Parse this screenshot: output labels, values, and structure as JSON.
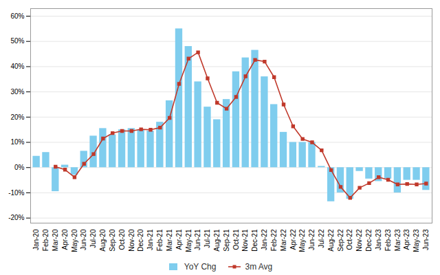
{
  "chart_data": {
    "type": "bar",
    "categories": [
      "Jan-20",
      "Feb-20",
      "Mar-20",
      "Apr-20",
      "May-20",
      "Jun-20",
      "Jul-20",
      "Aug-20",
      "Sep-20",
      "Oct-20",
      "Nov-20",
      "Dec-20",
      "Jan-21",
      "Feb-21",
      "Mar-21",
      "Apr-21",
      "May-21",
      "Jun-21",
      "Jul-21",
      "Aug-21",
      "Sep-21",
      "Oct-21",
      "Nov-21",
      "Dec-21",
      "Jan-22",
      "Feb-22",
      "Mar-22",
      "Apr-22",
      "May-22",
      "Jun-22",
      "Jul-22",
      "Aug-22",
      "Sep-22",
      "Oct-22",
      "Nov-22",
      "Dec-22",
      "Jan-23",
      "Feb-23",
      "Mar-23",
      "Apr-23",
      "May-23",
      "Jun-23"
    ],
    "series": [
      {
        "name": "YoY Chg",
        "type": "bar",
        "color": "#7FCDEE",
        "values": [
          4.5,
          6.0,
          -9.5,
          1.0,
          -3.0,
          6.5,
          12.5,
          15.5,
          13.0,
          15.0,
          15.5,
          15.0,
          14.5,
          18.0,
          26.5,
          55.0,
          48.0,
          34.0,
          24.0,
          19.0,
          27.0,
          38.0,
          43.5,
          46.5,
          36.0,
          25.0,
          14.0,
          10.0,
          10.0,
          10.0,
          0.5,
          -13.5,
          -10.0,
          -12.5,
          -1.5,
          -4.5,
          -5.5,
          -4.5,
          -10.0,
          -5.0,
          -5.0,
          -9.0
        ]
      },
      {
        "name": "3m Avg",
        "type": "line",
        "color": "#C0392B",
        "marker": "square",
        "values": [
          null,
          null,
          0.3333333333333333,
          -0.8333333333333334,
          -3.8333333333333335,
          1.5,
          5.333333333333333,
          11.5,
          13.666666666666666,
          14.5,
          14.5,
          15.166666666666666,
          15.0,
          15.833333333333334,
          19.666666666666668,
          33.166666666666664,
          43.166666666666664,
          45.666666666666664,
          35.333333333333336,
          25.666666666666668,
          23.333333333333332,
          28.0,
          36.166666666666664,
          42.666666666666664,
          42.0,
          35.833333333333336,
          25.0,
          16.333333333333332,
          11.333333333333334,
          10.0,
          6.833333333333333,
          -1.0,
          -7.666666666666667,
          -12.0,
          -8.0,
          -6.166666666666667,
          -3.8333333333333335,
          -4.833333333333333,
          -6.666666666666667,
          -6.5,
          -6.666666666666667,
          -6.333333333333333
        ]
      }
    ],
    "ylim": [
      -22,
      63
    ],
    "yticks": [
      {
        "value": -20,
        "label": "-20%"
      },
      {
        "value": -10,
        "label": "-10%"
      },
      {
        "value": 0,
        "label": "0%"
      },
      {
        "value": 10,
        "label": "10%"
      },
      {
        "value": 20,
        "label": "20%"
      },
      {
        "value": 30,
        "label": "30%"
      },
      {
        "value": 40,
        "label": "40%"
      },
      {
        "value": 50,
        "label": "50%"
      },
      {
        "value": 60,
        "label": "60%"
      }
    ],
    "grid": true,
    "legend": "bottom"
  }
}
